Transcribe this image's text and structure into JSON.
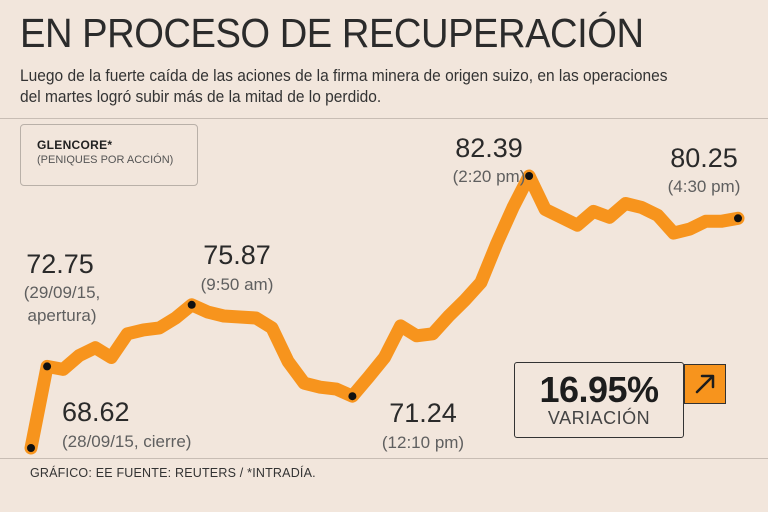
{
  "header": {
    "title": "EN PROCESO DE RECUPERACIÓN",
    "subtitle_line1": "Luego de la fuerte caída de las aciones de la  firma minera de origen suizo, en las operaciones",
    "subtitle_line2": "del martes logró subir más de la mitad de lo perdido."
  },
  "legend": {
    "name": "GLENCORE*",
    "unit": "(PENIQUES POR ACCIÓN)"
  },
  "variation": {
    "value": "16.95%",
    "label": "VARIACIÓN"
  },
  "footer": {
    "text": "GRÁFICO: EE  FUENTE: REUTERS / *INTRADÍA."
  },
  "colors": {
    "line": "#f7941d",
    "background": "#f2e6dc",
    "marker": "#111111"
  },
  "chart_data": {
    "type": "line",
    "title": "EN PROCESO DE RECUPERACIÓN",
    "ylabel": "(PENIQUES POR ACCIÓN)",
    "xlabel": "",
    "ylim": [
      68.2,
      82.9
    ],
    "series": [
      {
        "name": "GLENCORE*",
        "values": [
          68.62,
          72.75,
          72.6,
          73.3,
          73.7,
          73.2,
          74.4,
          74.6,
          74.7,
          75.2,
          75.87,
          75.5,
          75.3,
          75.25,
          75.2,
          74.7,
          73.0,
          71.9,
          71.7,
          71.6,
          71.24,
          72.2,
          73.2,
          74.8,
          74.3,
          74.4,
          75.3,
          76.1,
          77.0,
          79.0,
          80.8,
          82.39,
          80.7,
          80.3,
          79.9,
          80.6,
          80.3,
          81.0,
          80.8,
          80.4,
          79.5,
          79.7,
          80.1,
          80.1,
          80.25
        ]
      }
    ],
    "annotations": [
      {
        "index": 0,
        "value": "68.62",
        "label": "(28/09/15, cierre)"
      },
      {
        "index": 1,
        "value": "72.75",
        "label": "(29/09/15,",
        "label2": "apertura)"
      },
      {
        "index": 10,
        "value": "75.87",
        "label": "(9:50 am)"
      },
      {
        "index": 20,
        "value": "71.24",
        "label": "(12:10 pm)"
      },
      {
        "index": 31,
        "value": "82.39",
        "label": "(2:20 pm)"
      },
      {
        "index": 44,
        "value": "80.25",
        "label": "(4:30 pm)"
      }
    ]
  }
}
